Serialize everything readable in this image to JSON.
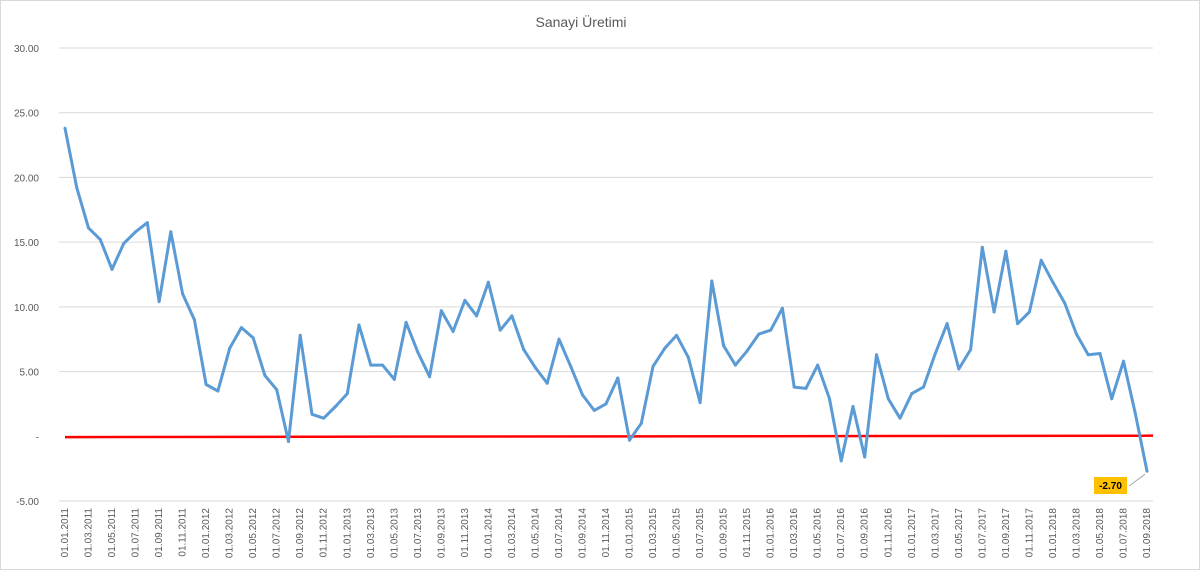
{
  "chart_data": {
    "type": "line",
    "title": "Sanayi Üretimi",
    "xlabel": "",
    "ylabel": "",
    "ylim": [
      -5,
      30
    ],
    "y_tick_labels": [
      "30.00",
      "25.00",
      "20.00",
      "15.00",
      "10.00",
      "5.00",
      "-",
      "-5.00"
    ],
    "y_tick_values": [
      30,
      25,
      20,
      15,
      10,
      5,
      0,
      -5
    ],
    "grid": true,
    "legend": "none",
    "x": [
      "01.01.2011",
      "01.02.2011",
      "01.03.2011",
      "01.04.2011",
      "01.05.2011",
      "01.06.2011",
      "01.07.2011",
      "01.08.2011",
      "01.09.2011",
      "01.10.2011",
      "01.11.2011",
      "01.12.2011",
      "01.01.2012",
      "01.02.2012",
      "01.03.2012",
      "01.04.2012",
      "01.05.2012",
      "01.06.2012",
      "01.07.2012",
      "01.08.2012",
      "01.09.2012",
      "01.10.2012",
      "01.11.2012",
      "01.12.2012",
      "01.01.2013",
      "01.02.2013",
      "01.03.2013",
      "01.04.2013",
      "01.05.2013",
      "01.06.2013",
      "01.07.2013",
      "01.08.2013",
      "01.09.2013",
      "01.10.2013",
      "01.11.2013",
      "01.12.2013",
      "01.01.2014",
      "01.02.2014",
      "01.03.2014",
      "01.04.2014",
      "01.05.2014",
      "01.06.2014",
      "01.07.2014",
      "01.08.2014",
      "01.09.2014",
      "01.10.2014",
      "01.11.2014",
      "01.12.2014",
      "01.01.2015",
      "01.02.2015",
      "01.03.2015",
      "01.04.2015",
      "01.05.2015",
      "01.06.2015",
      "01.07.2015",
      "01.08.2015",
      "01.09.2015",
      "01.10.2015",
      "01.11.2015",
      "01.12.2015",
      "01.01.2016",
      "01.02.2016",
      "01.03.2016",
      "01.04.2016",
      "01.05.2016",
      "01.06.2016",
      "01.07.2016",
      "01.08.2016",
      "01.09.2016",
      "01.10.2016",
      "01.11.2016",
      "01.12.2016",
      "01.01.2017",
      "01.02.2017",
      "01.03.2017",
      "01.04.2017",
      "01.05.2017",
      "01.06.2017",
      "01.07.2017",
      "01.08.2017",
      "01.09.2017",
      "01.10.2017",
      "01.11.2017",
      "01.12.2017",
      "01.01.2018",
      "01.02.2018",
      "01.03.2018",
      "01.04.2018",
      "01.05.2018",
      "01.06.2018",
      "01.07.2018",
      "01.08.2018",
      "01.09.2018"
    ],
    "x_tick_labels": [
      "01.01.2011",
      "01.03.2011",
      "01.05.2011",
      "01.07.2011",
      "01.09.2011",
      "01.11.2011",
      "01.01.2012",
      "01.03.2012",
      "01.05.2012",
      "01.07.2012",
      "01.09.2012",
      "01.11.2012",
      "01.01.2013",
      "01.03.2013",
      "01.05.2013",
      "01.07.2013",
      "01.09.2013",
      "01.11.2013",
      "01.01.2014",
      "01.03.2014",
      "01.05.2014",
      "01.07.2014",
      "01.09.2014",
      "01.11.2014",
      "01.01.2015",
      "01.03.2015",
      "01.05.2015",
      "01.07.2015",
      "01.09.2015",
      "01.11.2015",
      "01.01.2016",
      "01.03.2016",
      "01.05.2016",
      "01.07.2016",
      "01.09.2016",
      "01.11.2016",
      "01.01.2017",
      "01.03.2017",
      "01.05.2017",
      "01.07.2017",
      "01.09.2017",
      "01.11.2017",
      "01.01.2018",
      "01.03.2018",
      "01.05.2018",
      "01.07.2018",
      "01.09.2018"
    ],
    "series": [
      {
        "color": "#5b9bd5",
        "values": [
          23.8,
          19.2,
          16.1,
          15.2,
          12.9,
          14.9,
          15.8,
          16.5,
          10.4,
          15.8,
          11.0,
          9.0,
          4.0,
          3.5,
          6.8,
          8.4,
          7.6,
          4.7,
          3.6,
          -0.4,
          7.8,
          1.7,
          1.4,
          2.3,
          3.3,
          8.6,
          5.5,
          5.5,
          4.4,
          8.8,
          6.5,
          4.6,
          9.7,
          8.1,
          10.5,
          9.3,
          11.9,
          8.2,
          9.3,
          6.7,
          5.3,
          4.1,
          7.5,
          5.4,
          3.2,
          2.0,
          2.5,
          4.5,
          -0.3,
          1.0,
          5.4,
          6.8,
          7.8,
          6.1,
          2.6,
          12.0,
          7.0,
          5.5,
          6.6,
          7.9,
          8.2,
          9.9,
          3.8,
          3.7,
          5.5,
          2.9,
          -1.9,
          2.3,
          -1.6,
          6.3,
          2.9,
          1.4,
          3.3,
          3.8,
          6.4,
          8.7,
          5.2,
          6.7,
          14.6,
          9.6,
          14.3,
          8.7,
          9.6,
          13.6,
          11.9,
          10.3,
          7.9,
          6.3,
          6.4,
          2.9,
          5.8,
          1.8,
          -2.7
        ]
      }
    ],
    "reference_line": {
      "value": 0,
      "color": "#ff0000"
    },
    "callout": {
      "text": "-2.70",
      "color": "#ffc000"
    }
  }
}
